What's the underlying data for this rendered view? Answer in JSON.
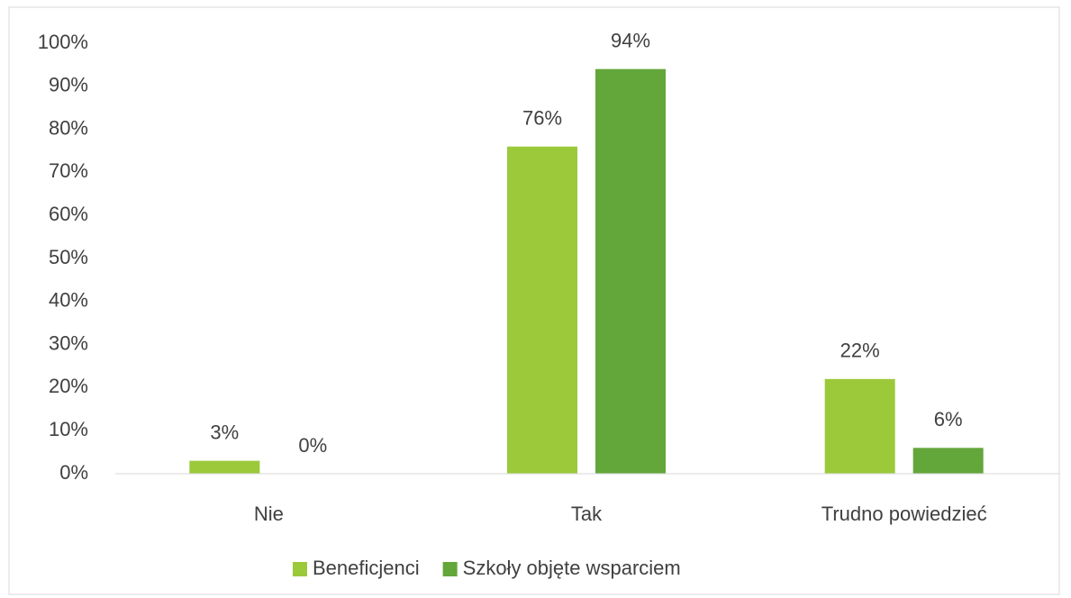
{
  "chart_data": {
    "type": "bar",
    "categories": [
      "Nie",
      "Tak",
      "Trudno powiedzieć"
    ],
    "series": [
      {
        "name": "Beneficjenci",
        "color": "#9bc93a",
        "values": [
          3,
          76,
          22
        ],
        "value_labels": [
          "3%",
          "76%",
          "22%"
        ]
      },
      {
        "name": "Szkoły objęte wsparciem",
        "color": "#63a63a",
        "values": [
          0,
          94,
          6
        ],
        "value_labels": [
          "0%",
          "94%",
          "6%"
        ]
      }
    ],
    "ylim": [
      0,
      100
    ],
    "yticks": [
      {
        "value": 0,
        "label": "0%"
      },
      {
        "value": 10,
        "label": "10%"
      },
      {
        "value": 20,
        "label": "20%"
      },
      {
        "value": 30,
        "label": "30%"
      },
      {
        "value": 40,
        "label": "40%"
      },
      {
        "value": 50,
        "label": "50%"
      },
      {
        "value": 60,
        "label": "60%"
      },
      {
        "value": 70,
        "label": "70%"
      },
      {
        "value": 80,
        "label": "80%"
      },
      {
        "value": 90,
        "label": "90%"
      },
      {
        "value": 100,
        "label": "100%"
      }
    ],
    "grid": false,
    "legend": "bottom"
  }
}
